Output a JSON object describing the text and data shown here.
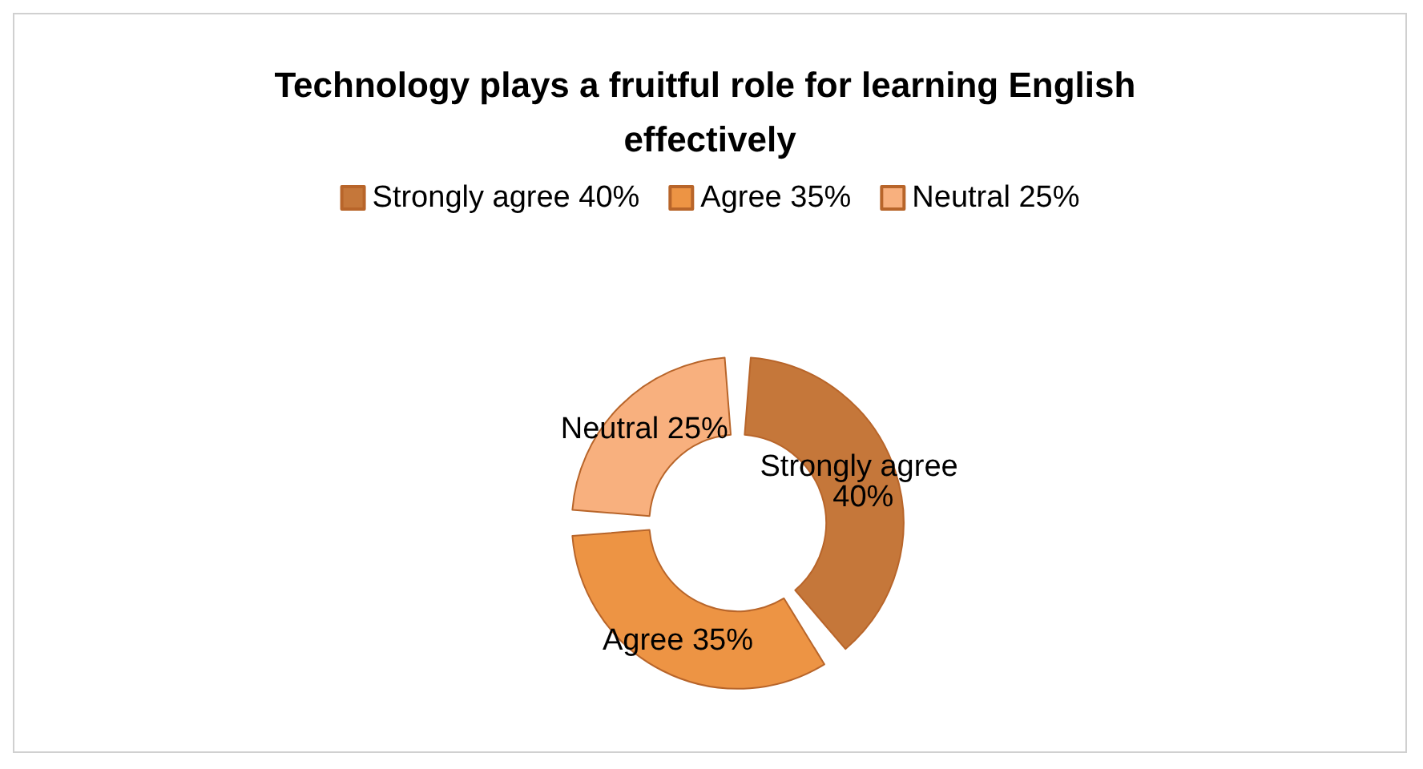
{
  "chart_data": {
    "type": "donut",
    "title": "Technology plays a fruitful role for learning English effectively",
    "categories": [
      "Strongly agree 40%",
      "Agree 35%",
      "Neutral 25%"
    ],
    "values": [
      40,
      35,
      25
    ],
    "colors": [
      "#c5773a",
      "#ed9444",
      "#f8b07e"
    ],
    "legend": "top",
    "value_labels": [
      "Strongly agree 40%",
      "Agree 35%",
      "Neutral 25%"
    ]
  }
}
